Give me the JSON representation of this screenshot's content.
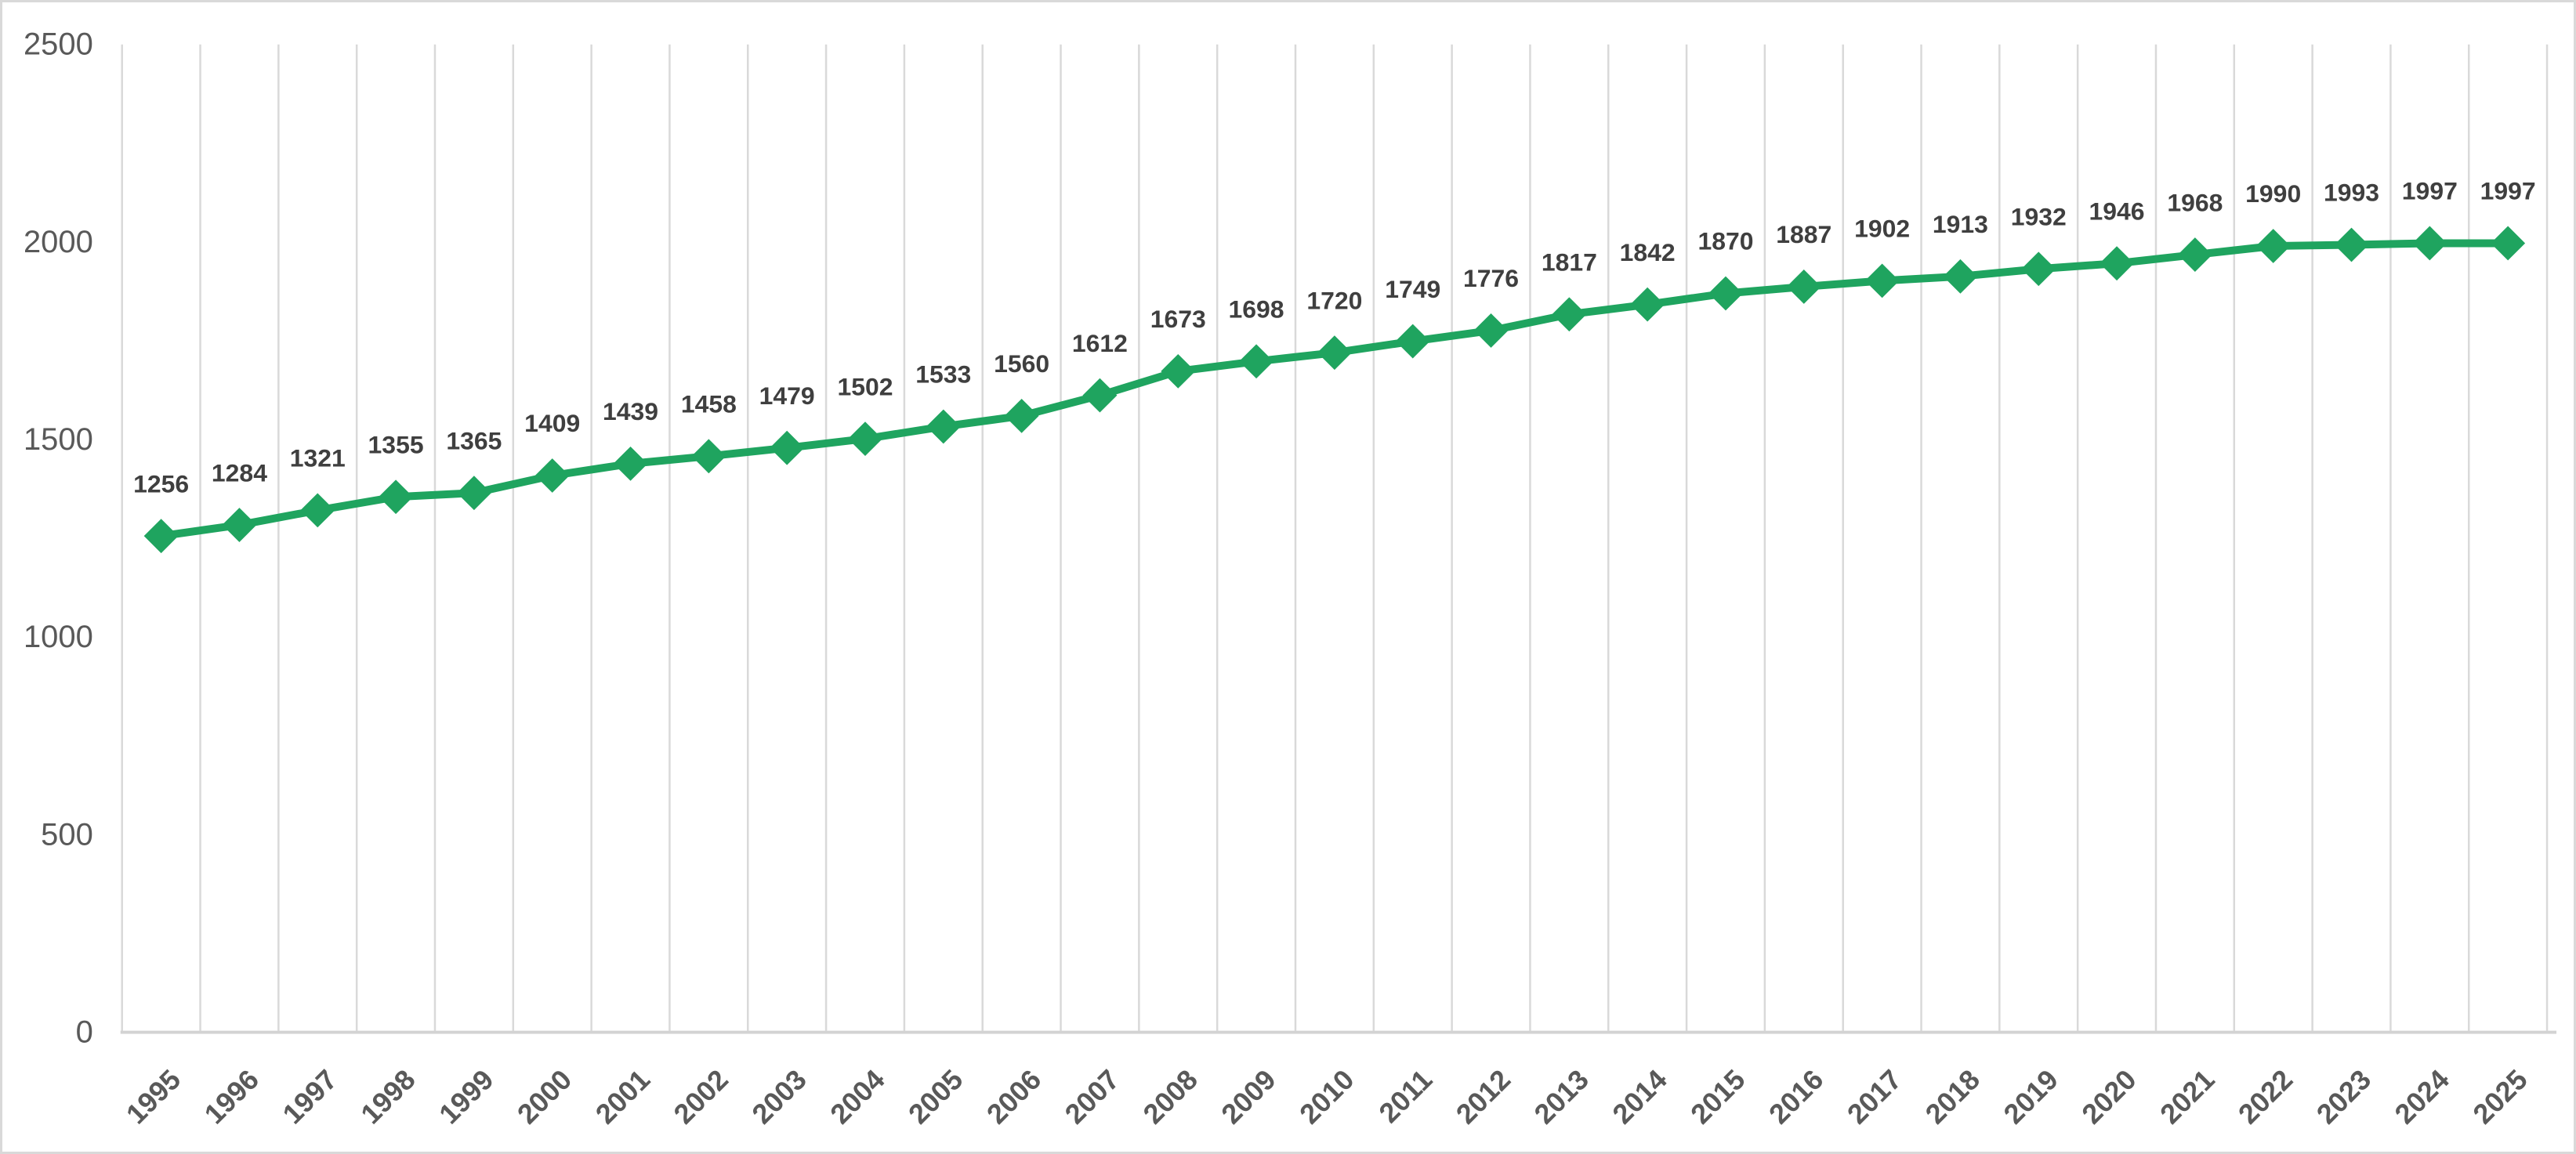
{
  "chart_data": {
    "type": "line",
    "title": "",
    "xlabel": "",
    "ylabel": "",
    "categories": [
      "1995",
      "1996",
      "1997",
      "1998",
      "1999",
      "2000",
      "2001",
      "2002",
      "2003",
      "2004",
      "2005",
      "2006",
      "2007",
      "2008",
      "2009",
      "2010",
      "2011",
      "2012",
      "2013",
      "2014",
      "2015",
      "2016",
      "2017",
      "2018",
      "2019",
      "2020",
      "2021",
      "2022",
      "2023",
      "2024",
      "2025"
    ],
    "values": [
      1256,
      1284,
      1321,
      1355,
      1365,
      1409,
      1439,
      1458,
      1479,
      1502,
      1533,
      1560,
      1612,
      1673,
      1698,
      1720,
      1749,
      1776,
      1817,
      1842,
      1870,
      1887,
      1902,
      1913,
      1932,
      1946,
      1968,
      1990,
      1993,
      1997,
      1997
    ],
    "data_labels": [
      "1256",
      "1284",
      "1321",
      "1355",
      "1365",
      "1409",
      "1439",
      "1458",
      "1479",
      "1502",
      "1533",
      "1560",
      "1612",
      "1673",
      "1698",
      "1720",
      "1749",
      "1776",
      "1817",
      "1842",
      "1870",
      "1887",
      "1902",
      "1913",
      "1932",
      "1946",
      "1968",
      "1990",
      "1993",
      "1997",
      "1997"
    ],
    "y_ticks": [
      0,
      500,
      1000,
      1500,
      2000,
      2500
    ],
    "ylim": [
      0,
      2500
    ],
    "x_tick_rotation": -45,
    "legend": "none",
    "grid": "vertical-only",
    "marker": "diamond",
    "colors": {
      "series": "#1FA45F",
      "gridline": "#D9D9D9",
      "axis_line": "#D3D3D3",
      "tick_label": "#595959",
      "data_label": "#3F3F3F",
      "background": "#FFFFFF",
      "border": "#D9D9D9"
    }
  }
}
